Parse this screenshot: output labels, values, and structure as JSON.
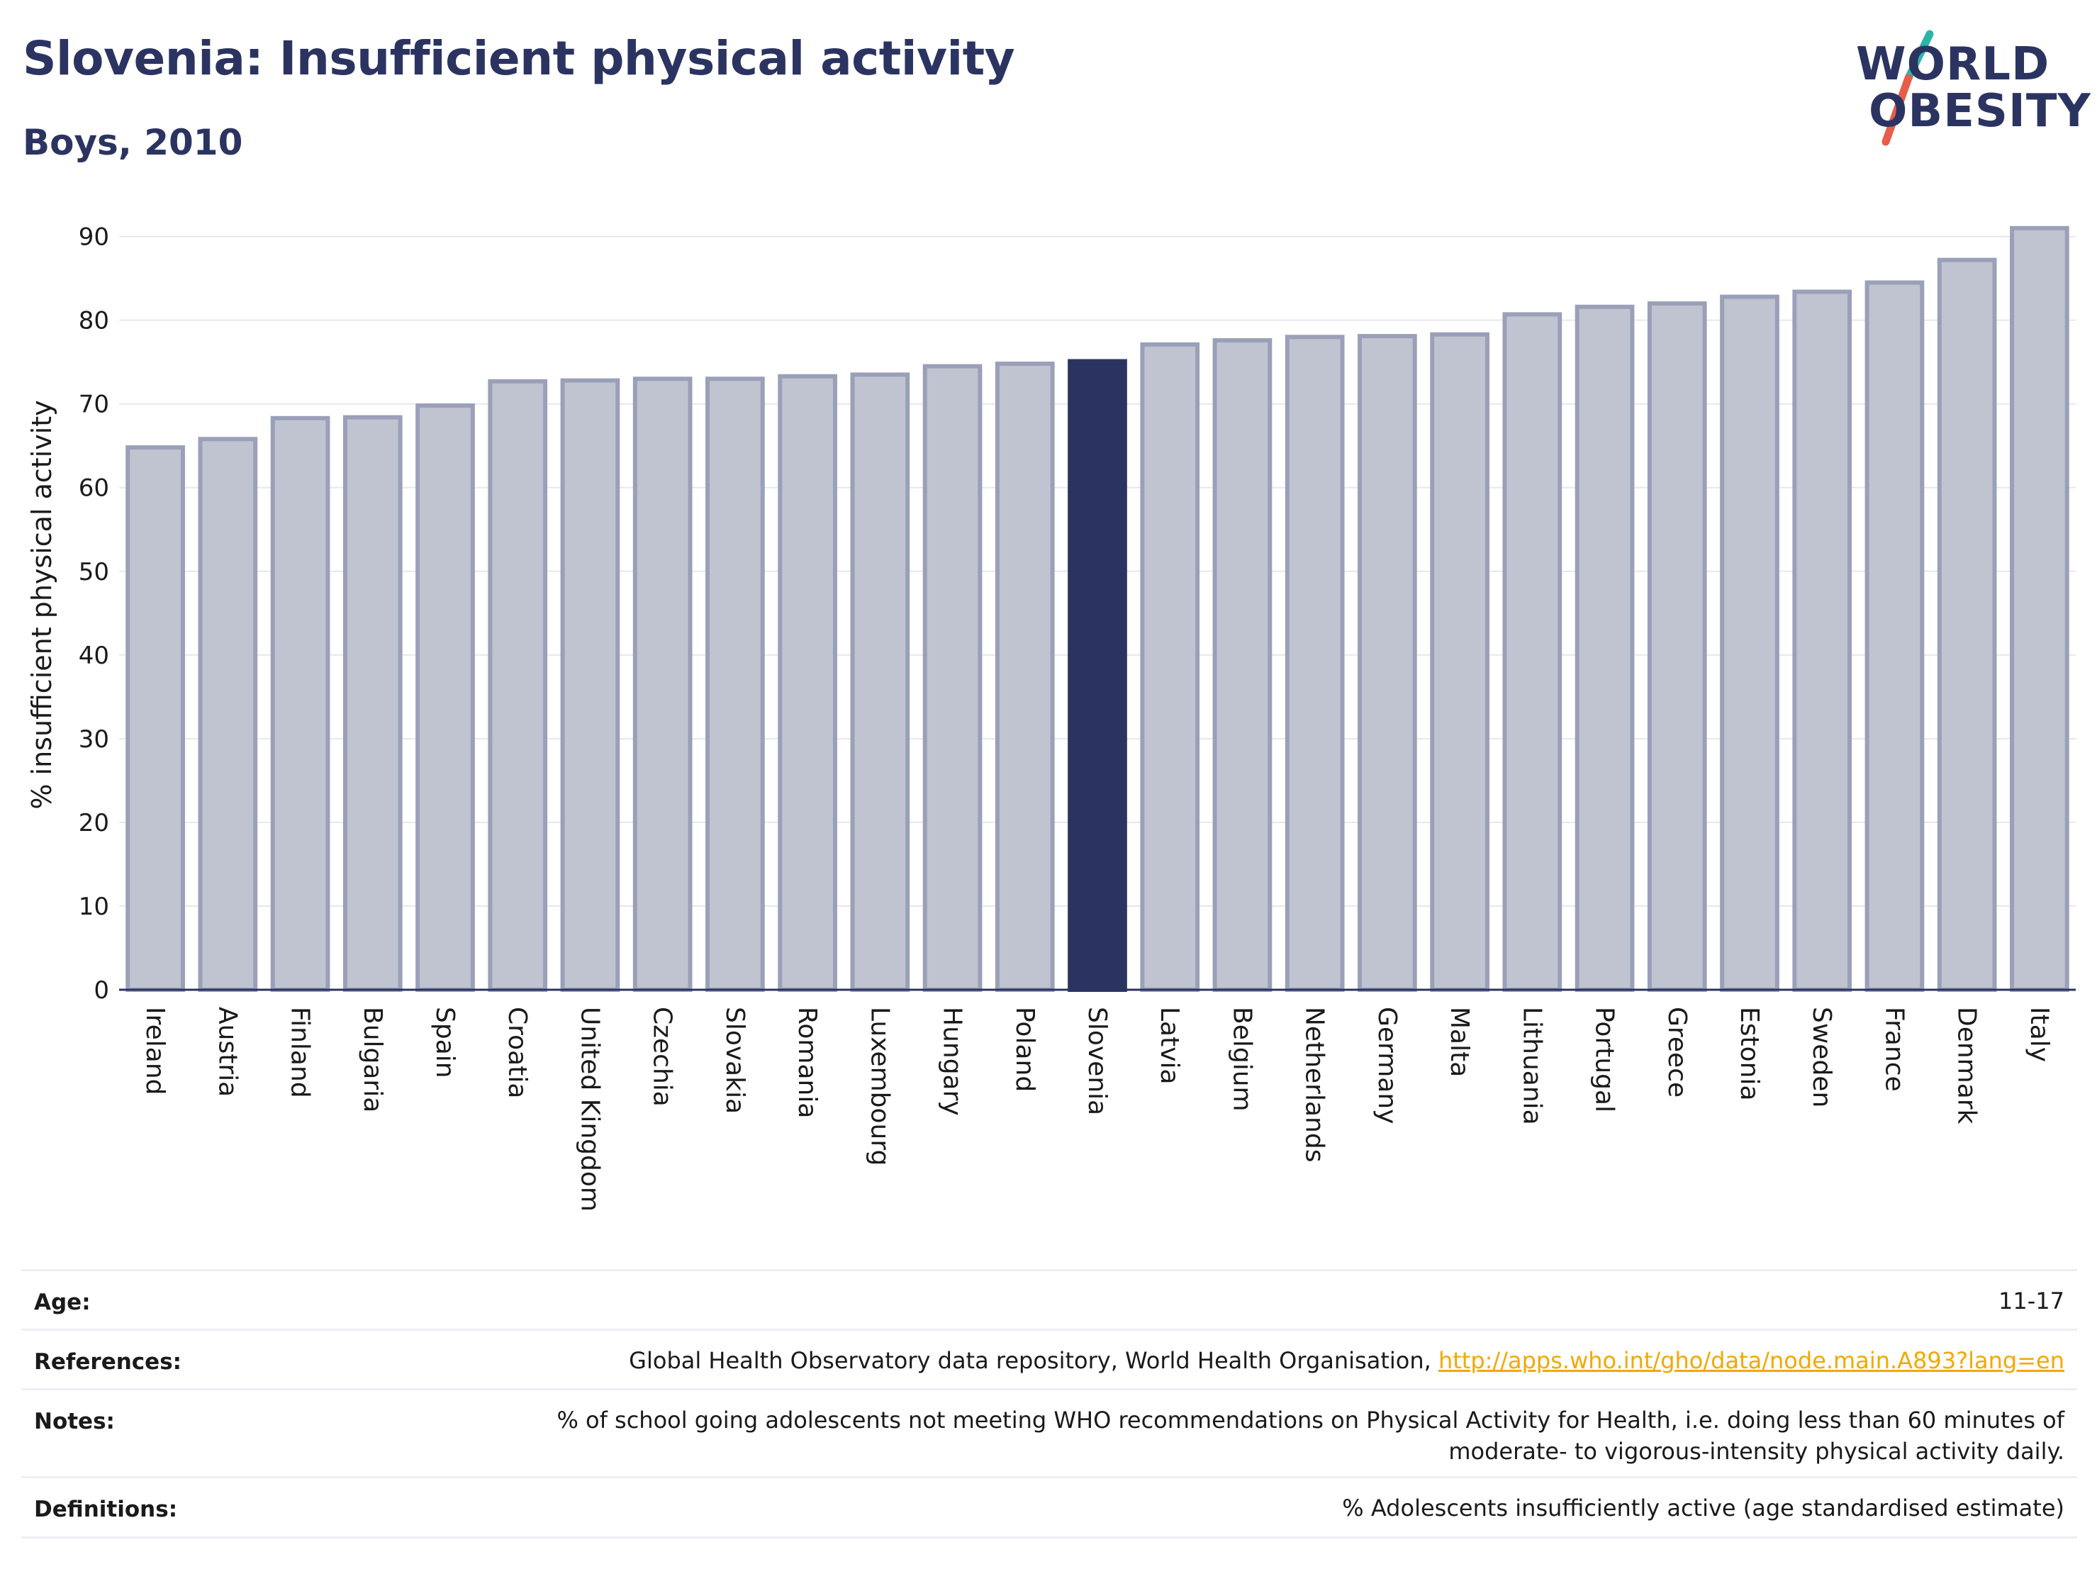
{
  "header": {
    "title": "Slovenia: Insufficient physical activity",
    "subtitle": "Boys, 2010"
  },
  "logo": {
    "line1": "WORLD",
    "line2": "OBESITY",
    "accent_colors": [
      "#2bb5a8",
      "#e85c4a"
    ]
  },
  "colors": {
    "highlight": "#2b3461",
    "bar_fill": "#c0c3d0",
    "bar_stroke": "#9aa0b8",
    "grid": "#e6e8f0",
    "link": "#f2a900"
  },
  "chart_data": {
    "type": "bar",
    "ylabel": "% insufficient physical activity",
    "ylim": [
      0,
      92
    ],
    "yticks": [
      0,
      10,
      20,
      30,
      40,
      50,
      60,
      70,
      80,
      90
    ],
    "highlight": "Slovenia",
    "grid": true,
    "categories": [
      "Ireland",
      "Austria",
      "Finland",
      "Bulgaria",
      "Spain",
      "Croatia",
      "United Kingdom",
      "Czechia",
      "Slovakia",
      "Romania",
      "Luxembourg",
      "Hungary",
      "Poland",
      "Slovenia",
      "Latvia",
      "Belgium",
      "Netherlands",
      "Germany",
      "Malta",
      "Lithuania",
      "Portugal",
      "Greece",
      "Estonia",
      "Sweden",
      "France",
      "Denmark",
      "Italy"
    ],
    "values": [
      64.8,
      65.8,
      68.3,
      68.4,
      69.8,
      72.7,
      72.8,
      73.0,
      73.0,
      73.3,
      73.5,
      74.5,
      74.8,
      75.1,
      77.1,
      77.6,
      78.0,
      78.1,
      78.3,
      80.7,
      81.6,
      82.0,
      82.8,
      83.4,
      84.5,
      87.2,
      91.0
    ]
  },
  "info": {
    "age_label": "Age:",
    "age_value": "11-17",
    "references_label": "References:",
    "references_text": "Global Health Observatory data repository, World Health Organisation, ",
    "references_link": "http://apps.who.int/gho/data/node.main.A893?lang=en",
    "notes_label": "Notes:",
    "notes_line1": "% of school going adolescents not meeting WHO recommendations on Physical Activity for Health, i.e. doing less than 60 minutes of",
    "notes_line2": "moderate- to vigorous-intensity physical activity daily.",
    "definitions_label": "Definitions:",
    "definitions_value": "% Adolescents insufficiently active (age standardised estimate)"
  }
}
